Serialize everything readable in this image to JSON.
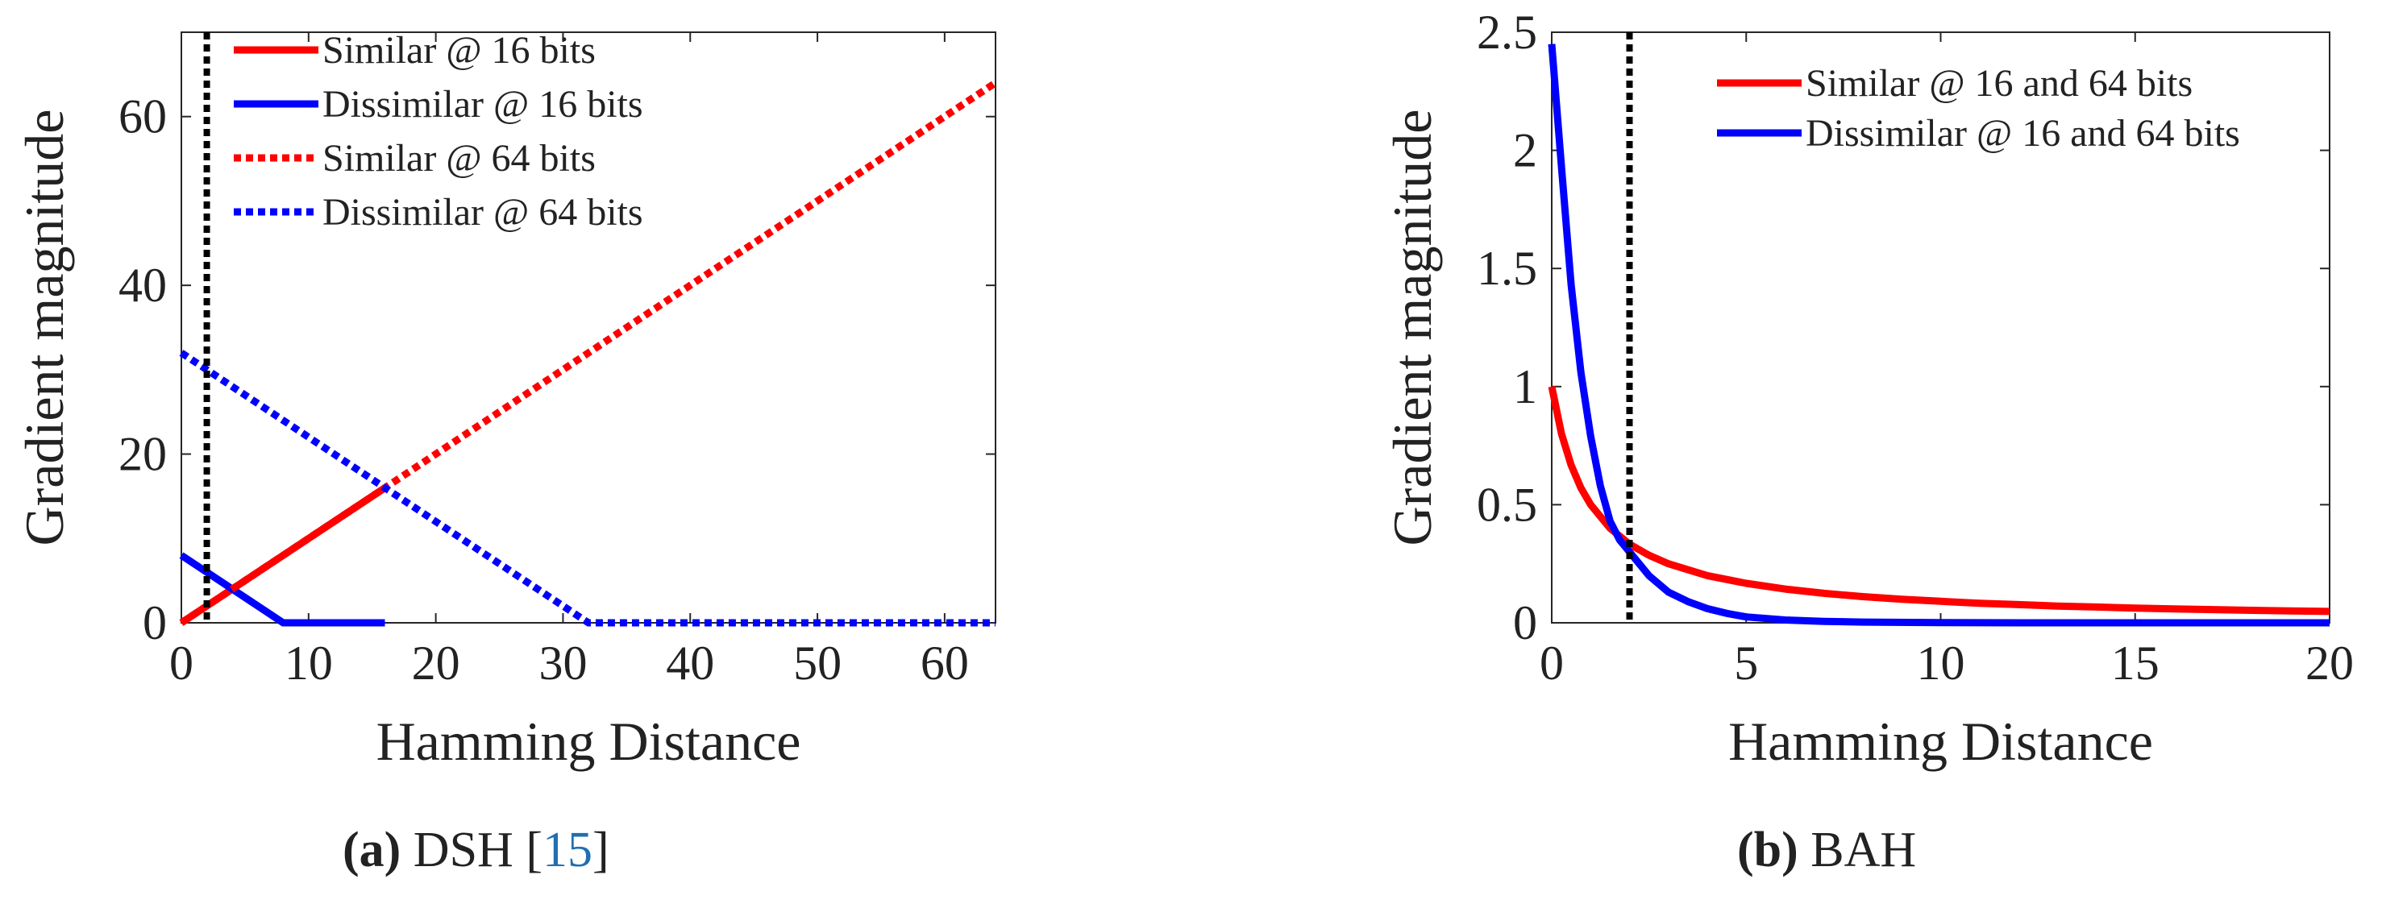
{
  "chart_data": [
    {
      "type": "line",
      "panel": "a",
      "xlabel": "Hamming Distance",
      "ylabel": "Gradient magnitude",
      "xlim": [
        0,
        64
      ],
      "ylim": [
        0,
        70
      ],
      "xticks": [
        0,
        10,
        20,
        30,
        40,
        50,
        60
      ],
      "yticks": [
        0,
        20,
        40,
        60
      ],
      "threshold_x": 2,
      "legend_position": "top-left",
      "series": [
        {
          "name": "Similar @ 16 bits",
          "color": "#ff0000",
          "style": "solid",
          "x": [
            0,
            16
          ],
          "y": [
            0,
            16
          ]
        },
        {
          "name": "Dissimilar @ 16 bits",
          "color": "#0000ff",
          "style": "solid",
          "x": [
            0,
            8,
            16
          ],
          "y": [
            8,
            0,
            0
          ]
        },
        {
          "name": "Similar @ 64 bits",
          "color": "#ff0000",
          "style": "dotted",
          "x": [
            0,
            64
          ],
          "y": [
            0,
            64
          ]
        },
        {
          "name": "Dissimilar @ 64 bits",
          "color": "#0000ff",
          "style": "dotted",
          "x": [
            0,
            32,
            64
          ],
          "y": [
            32,
            0,
            0
          ]
        }
      ]
    },
    {
      "type": "line",
      "panel": "b",
      "xlabel": "Hamming Distance",
      "ylabel": "Gradient magnitude",
      "xlim": [
        0,
        20
      ],
      "ylim": [
        0,
        2.5
      ],
      "xticks": [
        0,
        5,
        10,
        15,
        20
      ],
      "yticks": [
        0,
        0.5,
        1,
        1.5,
        2,
        2.5
      ],
      "threshold_x": 2,
      "legend_position": "top-right",
      "series": [
        {
          "name": "Similar @ 16 and 64 bits",
          "color": "#ff0000",
          "style": "solid",
          "x": [
            0,
            0.25,
            0.5,
            0.75,
            1,
            1.5,
            2,
            2.5,
            3,
            4,
            5,
            6,
            7,
            8,
            9,
            10,
            11,
            12,
            13,
            14,
            15,
            16,
            17,
            18,
            19,
            20
          ],
          "y": [
            1,
            0.8,
            0.667,
            0.571,
            0.5,
            0.4,
            0.333,
            0.286,
            0.25,
            0.2,
            0.167,
            0.143,
            0.125,
            0.111,
            0.1,
            0.091,
            0.083,
            0.077,
            0.071,
            0.067,
            0.062,
            0.059,
            0.056,
            0.053,
            0.05,
            0.048
          ]
        },
        {
          "name": "Dissimilar @ 16 and 64 bits",
          "color": "#0000ff",
          "style": "solid",
          "x": [
            0,
            0.25,
            0.5,
            0.75,
            1,
            1.25,
            1.5,
            1.75,
            2,
            2.5,
            3,
            3.5,
            4,
            4.5,
            5,
            6,
            7,
            8,
            10,
            12,
            14,
            16,
            18,
            20
          ],
          "y": [
            2.45,
            1.93,
            1.43,
            1.06,
            0.79,
            0.58,
            0.43,
            0.35,
            0.3,
            0.2,
            0.13,
            0.09,
            0.06,
            0.04,
            0.025,
            0.012,
            0.006,
            0.003,
            0.001,
            0,
            0,
            0,
            0,
            0
          ]
        }
      ]
    }
  ],
  "captions": {
    "a": {
      "label": "(a)",
      "text": "DSH [",
      "cite": "15",
      "end": "]"
    },
    "b": {
      "label": "(b)",
      "text": "BAH"
    }
  }
}
